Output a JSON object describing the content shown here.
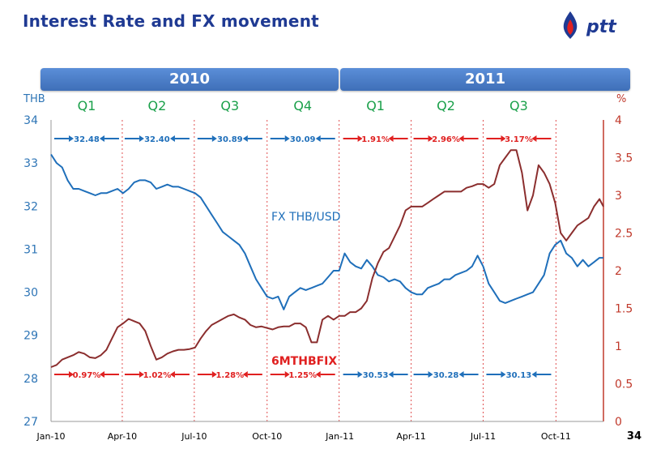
{
  "slide": {
    "title": "Interest Rate and FX movement",
    "page_number": "34",
    "years": [
      "2010",
      "2011"
    ],
    "logo_text": "ptt"
  },
  "colors": {
    "fx": "#1f6fba",
    "rate": "#8b2e2e",
    "red_label": "#e02020",
    "blue_label": "#1f6fba",
    "quarter_green": "#1aa04a",
    "axis_right": "#c0392b",
    "axis_left": "#2e75b6",
    "banner": "#4a7fcb",
    "title": "#1f3a93"
  },
  "chart_data": {
    "type": "line",
    "x_tick_labels": [
      "Jan-10",
      "Apr-10",
      "Jul-10",
      "Oct-10",
      "Jan-11",
      "Apr-11",
      "Jul-11",
      "Oct-11"
    ],
    "x_range": [
      "2010-01-01",
      "2011-11-30"
    ],
    "quarter_dividers": [
      "2010-04-01",
      "2010-07-01",
      "2010-10-01",
      "2010-12-31",
      "2011-04-01",
      "2011-07-01",
      "2011-10-01"
    ],
    "y_left": {
      "label": "THB",
      "range": [
        27,
        34
      ],
      "ticks": [
        27,
        28,
        29,
        30,
        31,
        32,
        33,
        34
      ]
    },
    "y_right": {
      "label": "%",
      "range": [
        0,
        4
      ],
      "ticks": [
        "0",
        "0.5",
        "1",
        "1.5",
        "2",
        "2.5",
        "3",
        "3.5",
        "4"
      ]
    },
    "quarter_labels": [
      {
        "text": "Q1",
        "mid": "2010-02-15"
      },
      {
        "text": "Q2",
        "mid": "2010-05-15"
      },
      {
        "text": "Q3",
        "mid": "2010-08-15"
      },
      {
        "text": "Q4",
        "mid": "2010-11-15"
      },
      {
        "text": "Q1",
        "mid": "2011-02-15"
      },
      {
        "text": "Q2",
        "mid": "2011-05-15"
      },
      {
        "text": "Q3",
        "mid": "2011-08-15"
      }
    ],
    "avg_fx_2010": [
      {
        "text": "32.48",
        "mid": "2010-02-15"
      },
      {
        "text": "32.40",
        "mid": "2010-05-15"
      },
      {
        "text": "30.89",
        "mid": "2010-08-15"
      },
      {
        "text": "30.09",
        "mid": "2010-11-15"
      }
    ],
    "avg_rate_2011": [
      {
        "text": "1.91%",
        "mid": "2011-02-15"
      },
      {
        "text": "2.96%",
        "mid": "2011-05-15"
      },
      {
        "text": "3.17%",
        "mid": "2011-08-15"
      }
    ],
    "avg_rate_2010": [
      {
        "text": "0.97%",
        "mid": "2010-02-15"
      },
      {
        "text": "1.02%",
        "mid": "2010-05-15"
      },
      {
        "text": "1.28%",
        "mid": "2010-08-15"
      },
      {
        "text": "1.25%",
        "mid": "2010-11-15"
      }
    ],
    "avg_fx_2011": [
      {
        "text": "30.53",
        "mid": "2011-02-15"
      },
      {
        "text": "30.28",
        "mid": "2011-05-15"
      },
      {
        "text": "30.13",
        "mid": "2011-08-15"
      }
    ],
    "series": [
      {
        "name": "FX THB/USD",
        "axis": "left",
        "points": [
          [
            "2010-01-01",
            33.2
          ],
          [
            "2010-01-08",
            33.0
          ],
          [
            "2010-01-15",
            32.9
          ],
          [
            "2010-01-22",
            32.6
          ],
          [
            "2010-01-29",
            32.4
          ],
          [
            "2010-02-05",
            32.4
          ],
          [
            "2010-02-12",
            32.35
          ],
          [
            "2010-02-19",
            32.3
          ],
          [
            "2010-02-26",
            32.25
          ],
          [
            "2010-03-05",
            32.3
          ],
          [
            "2010-03-12",
            32.3
          ],
          [
            "2010-03-19",
            32.35
          ],
          [
            "2010-03-26",
            32.4
          ],
          [
            "2010-04-02",
            32.3
          ],
          [
            "2010-04-09",
            32.4
          ],
          [
            "2010-04-16",
            32.55
          ],
          [
            "2010-04-23",
            32.6
          ],
          [
            "2010-04-30",
            32.6
          ],
          [
            "2010-05-07",
            32.55
          ],
          [
            "2010-05-14",
            32.4
          ],
          [
            "2010-05-21",
            32.45
          ],
          [
            "2010-05-28",
            32.5
          ],
          [
            "2010-06-04",
            32.45
          ],
          [
            "2010-06-11",
            32.45
          ],
          [
            "2010-06-18",
            32.4
          ],
          [
            "2010-06-25",
            32.35
          ],
          [
            "2010-07-02",
            32.3
          ],
          [
            "2010-07-09",
            32.2
          ],
          [
            "2010-07-16",
            32.0
          ],
          [
            "2010-07-23",
            31.8
          ],
          [
            "2010-07-30",
            31.6
          ],
          [
            "2010-08-06",
            31.4
          ],
          [
            "2010-08-13",
            31.3
          ],
          [
            "2010-08-20",
            31.2
          ],
          [
            "2010-08-27",
            31.1
          ],
          [
            "2010-09-03",
            30.9
          ],
          [
            "2010-09-10",
            30.6
          ],
          [
            "2010-09-17",
            30.3
          ],
          [
            "2010-09-24",
            30.1
          ],
          [
            "2010-10-01",
            29.9
          ],
          [
            "2010-10-08",
            29.85
          ],
          [
            "2010-10-15",
            29.9
          ],
          [
            "2010-10-22",
            29.6
          ],
          [
            "2010-10-29",
            29.9
          ],
          [
            "2010-11-05",
            30.0
          ],
          [
            "2010-11-12",
            30.1
          ],
          [
            "2010-11-19",
            30.05
          ],
          [
            "2010-11-26",
            30.1
          ],
          [
            "2010-12-03",
            30.15
          ],
          [
            "2010-12-10",
            30.2
          ],
          [
            "2010-12-17",
            30.35
          ],
          [
            "2010-12-24",
            30.5
          ],
          [
            "2010-12-31",
            30.5
          ],
          [
            "2011-01-07",
            30.9
          ],
          [
            "2011-01-14",
            30.7
          ],
          [
            "2011-01-21",
            30.6
          ],
          [
            "2011-01-28",
            30.55
          ],
          [
            "2011-02-04",
            30.75
          ],
          [
            "2011-02-11",
            30.6
          ],
          [
            "2011-02-18",
            30.4
          ],
          [
            "2011-02-25",
            30.35
          ],
          [
            "2011-03-04",
            30.25
          ],
          [
            "2011-03-11",
            30.3
          ],
          [
            "2011-03-18",
            30.25
          ],
          [
            "2011-03-25",
            30.1
          ],
          [
            "2011-04-01",
            30.0
          ],
          [
            "2011-04-08",
            29.95
          ],
          [
            "2011-04-15",
            29.95
          ],
          [
            "2011-04-22",
            30.1
          ],
          [
            "2011-04-29",
            30.15
          ],
          [
            "2011-05-06",
            30.2
          ],
          [
            "2011-05-13",
            30.3
          ],
          [
            "2011-05-20",
            30.3
          ],
          [
            "2011-05-27",
            30.4
          ],
          [
            "2011-06-03",
            30.45
          ],
          [
            "2011-06-10",
            30.5
          ],
          [
            "2011-06-17",
            30.6
          ],
          [
            "2011-06-24",
            30.85
          ],
          [
            "2011-07-01",
            30.6
          ],
          [
            "2011-07-08",
            30.2
          ],
          [
            "2011-07-15",
            30.0
          ],
          [
            "2011-07-22",
            29.8
          ],
          [
            "2011-07-29",
            29.75
          ],
          [
            "2011-08-05",
            29.8
          ],
          [
            "2011-08-12",
            29.85
          ],
          [
            "2011-08-19",
            29.9
          ],
          [
            "2011-08-26",
            29.95
          ],
          [
            "2011-09-02",
            30.0
          ],
          [
            "2011-09-09",
            30.2
          ],
          [
            "2011-09-16",
            30.4
          ],
          [
            "2011-09-23",
            30.9
          ],
          [
            "2011-09-30",
            31.1
          ],
          [
            "2011-10-07",
            31.2
          ],
          [
            "2011-10-14",
            30.9
          ],
          [
            "2011-10-21",
            30.8
          ],
          [
            "2011-10-28",
            30.6
          ],
          [
            "2011-11-04",
            30.75
          ],
          [
            "2011-11-11",
            30.6
          ],
          [
            "2011-11-18",
            30.7
          ],
          [
            "2011-11-25",
            30.8
          ],
          [
            "2011-11-30",
            30.8
          ]
        ]
      },
      {
        "name": "6MTHBFIX",
        "axis": "right",
        "points": [
          [
            "2010-01-01",
            0.72
          ],
          [
            "2010-01-08",
            0.75
          ],
          [
            "2010-01-15",
            0.82
          ],
          [
            "2010-01-22",
            0.85
          ],
          [
            "2010-01-29",
            0.88
          ],
          [
            "2010-02-05",
            0.92
          ],
          [
            "2010-02-12",
            0.9
          ],
          [
            "2010-02-19",
            0.85
          ],
          [
            "2010-02-26",
            0.84
          ],
          [
            "2010-03-05",
            0.88
          ],
          [
            "2010-03-12",
            0.95
          ],
          [
            "2010-03-19",
            1.1
          ],
          [
            "2010-03-26",
            1.25
          ],
          [
            "2010-04-02",
            1.3
          ],
          [
            "2010-04-09",
            1.36
          ],
          [
            "2010-04-16",
            1.33
          ],
          [
            "2010-04-23",
            1.3
          ],
          [
            "2010-04-30",
            1.2
          ],
          [
            "2010-05-07",
            1.0
          ],
          [
            "2010-05-14",
            0.82
          ],
          [
            "2010-05-21",
            0.85
          ],
          [
            "2010-05-28",
            0.9
          ],
          [
            "2010-06-04",
            0.93
          ],
          [
            "2010-06-11",
            0.95
          ],
          [
            "2010-06-18",
            0.95
          ],
          [
            "2010-06-25",
            0.96
          ],
          [
            "2010-07-02",
            0.98
          ],
          [
            "2010-07-09",
            1.1
          ],
          [
            "2010-07-16",
            1.2
          ],
          [
            "2010-07-23",
            1.28
          ],
          [
            "2010-07-30",
            1.32
          ],
          [
            "2010-08-06",
            1.36
          ],
          [
            "2010-08-13",
            1.4
          ],
          [
            "2010-08-20",
            1.42
          ],
          [
            "2010-08-27",
            1.38
          ],
          [
            "2010-09-03",
            1.35
          ],
          [
            "2010-09-10",
            1.28
          ],
          [
            "2010-09-17",
            1.25
          ],
          [
            "2010-09-24",
            1.26
          ],
          [
            "2010-10-01",
            1.24
          ],
          [
            "2010-10-08",
            1.22
          ],
          [
            "2010-10-15",
            1.25
          ],
          [
            "2010-10-22",
            1.26
          ],
          [
            "2010-10-29",
            1.26
          ],
          [
            "2010-11-05",
            1.3
          ],
          [
            "2010-11-12",
            1.3
          ],
          [
            "2010-11-19",
            1.25
          ],
          [
            "2010-11-26",
            1.05
          ],
          [
            "2010-12-03",
            1.05
          ],
          [
            "2010-12-10",
            1.35
          ],
          [
            "2010-12-17",
            1.4
          ],
          [
            "2010-12-24",
            1.35
          ],
          [
            "2010-12-31",
            1.4
          ],
          [
            "2011-01-07",
            1.4
          ],
          [
            "2011-01-14",
            1.45
          ],
          [
            "2011-01-21",
            1.45
          ],
          [
            "2011-01-28",
            1.5
          ],
          [
            "2011-02-04",
            1.6
          ],
          [
            "2011-02-11",
            1.9
          ],
          [
            "2011-02-18",
            2.1
          ],
          [
            "2011-02-25",
            2.25
          ],
          [
            "2011-03-04",
            2.3
          ],
          [
            "2011-03-11",
            2.45
          ],
          [
            "2011-03-18",
            2.6
          ],
          [
            "2011-03-25",
            2.8
          ],
          [
            "2011-04-01",
            2.85
          ],
          [
            "2011-04-08",
            2.85
          ],
          [
            "2011-04-15",
            2.85
          ],
          [
            "2011-04-22",
            2.9
          ],
          [
            "2011-04-29",
            2.95
          ],
          [
            "2011-05-06",
            3.0
          ],
          [
            "2011-05-13",
            3.05
          ],
          [
            "2011-05-20",
            3.05
          ],
          [
            "2011-05-27",
            3.05
          ],
          [
            "2011-06-03",
            3.05
          ],
          [
            "2011-06-10",
            3.1
          ],
          [
            "2011-06-17",
            3.12
          ],
          [
            "2011-06-24",
            3.15
          ],
          [
            "2011-07-01",
            3.15
          ],
          [
            "2011-07-08",
            3.1
          ],
          [
            "2011-07-15",
            3.15
          ],
          [
            "2011-07-22",
            3.4
          ],
          [
            "2011-07-29",
            3.5
          ],
          [
            "2011-08-05",
            3.6
          ],
          [
            "2011-08-12",
            3.6
          ],
          [
            "2011-08-19",
            3.3
          ],
          [
            "2011-08-26",
            2.8
          ],
          [
            "2011-09-02",
            3.0
          ],
          [
            "2011-09-09",
            3.4
          ],
          [
            "2011-09-16",
            3.3
          ],
          [
            "2011-09-23",
            3.15
          ],
          [
            "2011-09-30",
            2.9
          ],
          [
            "2011-10-07",
            2.5
          ],
          [
            "2011-10-14",
            2.4
          ],
          [
            "2011-10-21",
            2.5
          ],
          [
            "2011-10-28",
            2.6
          ],
          [
            "2011-11-04",
            2.65
          ],
          [
            "2011-11-11",
            2.7
          ],
          [
            "2011-11-18",
            2.85
          ],
          [
            "2011-11-25",
            2.95
          ],
          [
            "2011-11-30",
            2.85
          ]
        ]
      }
    ]
  }
}
